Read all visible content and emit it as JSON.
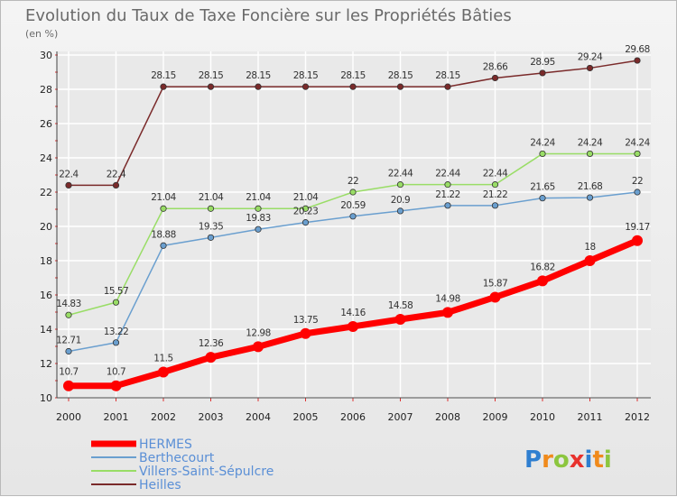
{
  "chart_data": {
    "type": "line",
    "title": "Evolution du Taux de Taxe Foncière sur les Propriétés Bâties",
    "subtitle": "(en %)",
    "xlabel": "",
    "ylabel": "",
    "ylim": [
      10,
      30
    ],
    "y_ticks": [
      "10",
      "12",
      "14",
      "16",
      "18",
      "20",
      "22",
      "24",
      "26",
      "28",
      "30"
    ],
    "categories": [
      "2000",
      "2001",
      "2002",
      "2003",
      "2004",
      "2005",
      "2006",
      "2007",
      "2008",
      "2009",
      "2010",
      "2011",
      "2012"
    ],
    "grid": true,
    "legend_position": "bottom-left",
    "series": [
      {
        "name": "HERMES",
        "color": "#ff0000",
        "values": [
          10.7,
          10.7,
          11.5,
          12.36,
          12.98,
          13.75,
          14.16,
          14.58,
          14.98,
          15.87,
          16.82,
          18,
          19.17
        ],
        "labels": [
          "10.7",
          "10.7",
          "11.5",
          "12.36",
          "12.98",
          "13.75",
          "14.16",
          "14.58",
          "14.98",
          "15.87",
          "16.82",
          "18",
          "19.17"
        ]
      },
      {
        "name": "Berthecourt",
        "color": "#6a9fcf",
        "values": [
          12.71,
          13.22,
          18.88,
          19.35,
          19.83,
          20.23,
          20.59,
          20.9,
          21.22,
          21.22,
          21.65,
          21.68,
          22
        ],
        "labels": [
          "12.71",
          "13.22",
          "18.88",
          "19.35",
          "19.83",
          "20.23",
          "20.59",
          "20.9",
          "21.22",
          "21.22",
          "21.65",
          "21.68",
          "22"
        ]
      },
      {
        "name": "Villers-Saint-Sépulcre",
        "color": "#99dd66",
        "values": [
          14.83,
          15.57,
          21.04,
          21.04,
          21.04,
          21.04,
          22,
          22.44,
          22.44,
          22.44,
          24.24,
          24.24,
          24.24
        ],
        "labels": [
          "14.83",
          "15.57",
          "21.04",
          "21.04",
          "21.04",
          "21.04",
          "22",
          "22.44",
          "22.44",
          "22.44",
          "24.24",
          "24.24",
          "24.24"
        ]
      },
      {
        "name": "Heilles",
        "color": "#7a2a2a",
        "values": [
          22.4,
          22.4,
          28.15,
          28.15,
          28.15,
          28.15,
          28.15,
          28.15,
          28.15,
          28.66,
          28.95,
          29.24,
          29.68
        ],
        "labels": [
          "22.4",
          "22.4",
          "28.15",
          "28.15",
          "28.15",
          "28.15",
          "28.15",
          "28.15",
          "28.15",
          "28.66",
          "28.95",
          "29.24",
          "29.68"
        ]
      }
    ]
  },
  "logo": {
    "letters": [
      "P",
      "r",
      "o",
      "x",
      "i",
      "t",
      "i"
    ],
    "colors": [
      "#2f7fd0",
      "#f08a1c",
      "#8cc63f",
      "#e8322d",
      "#2f7fd0",
      "#f08a1c",
      "#8cc63f"
    ]
  }
}
